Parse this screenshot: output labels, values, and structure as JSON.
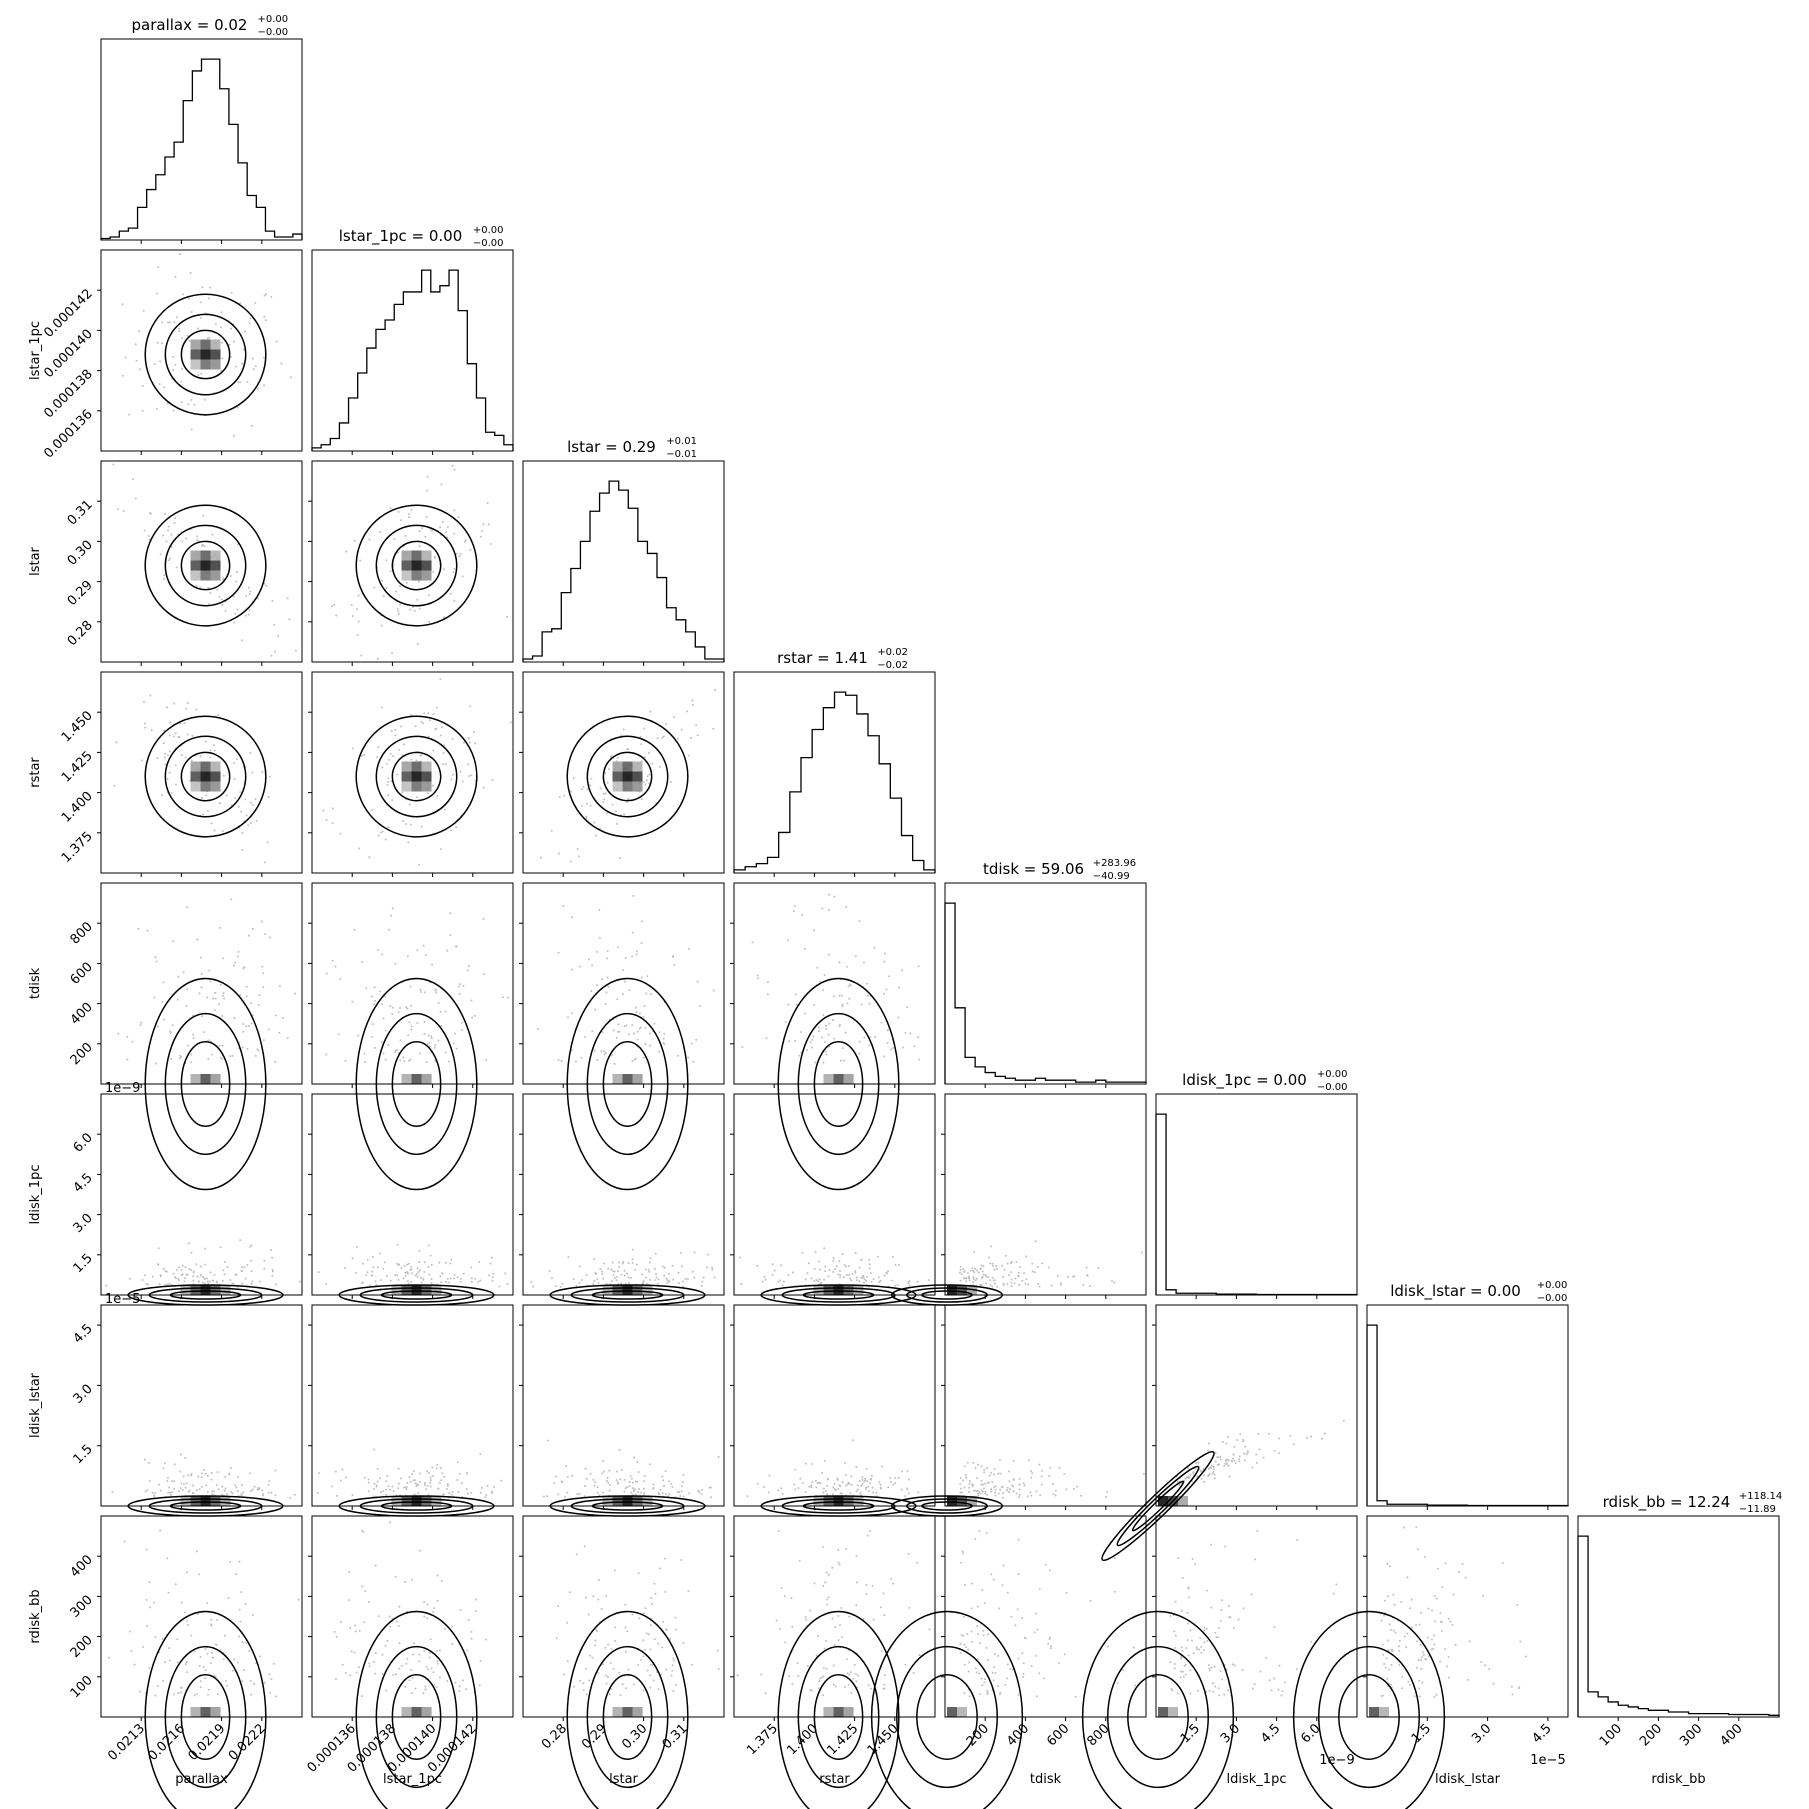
{
  "chart_data": {
    "type": "corner",
    "parameters": [
      {
        "name": "parallax",
        "title": "parallax = 0.02",
        "sup": "+0.00",
        "sub": "−0.00",
        "axis_label": "parallax",
        "range": [
          0.02102,
          0.02235
        ],
        "ticks": [
          "0.0213",
          "0.0216",
          "0.0219",
          "0.0222"
        ],
        "hist": [
          0.5,
          1,
          3,
          4,
          11,
          17,
          22,
          28,
          33,
          47,
          57,
          61,
          61,
          51,
          39,
          26,
          15,
          11,
          3,
          1,
          1,
          2
        ]
      },
      {
        "name": "lstar_1pc",
        "title": "lstar_1pc = 0.00",
        "sup": "+0.00",
        "sub": "−0.00",
        "axis_label": "lstar_1pc",
        "range": [
          0.0001347,
          0.0001434
        ],
        "ticks": [
          "0.000136",
          "0.000138",
          "0.000140",
          "0.000142"
        ],
        "hist": [
          1,
          2,
          4,
          9,
          17,
          25,
          33,
          39,
          42,
          47,
          51,
          51,
          58,
          51,
          53,
          58,
          45,
          28,
          17,
          6,
          5,
          2
        ]
      },
      {
        "name": "lstar",
        "title": "lstar = 0.29",
        "sup": "+0.01",
        "sub": "−0.01",
        "axis_label": "lstar",
        "range": [
          0.2735,
          0.3115
        ],
        "ticks": [
          "0.28",
          "0.29",
          "0.30",
          "0.31"
        ],
        "hist": [
          1,
          2,
          10,
          11,
          23,
          31,
          40,
          50,
          56,
          60,
          57,
          51,
          40,
          36,
          28,
          18,
          14,
          10,
          5,
          1,
          1
        ]
      },
      {
        "name": "rstar",
        "title": "rstar = 1.41",
        "sup": "+0.02",
        "sub": "−0.02",
        "axis_label": "rstar",
        "range": [
          1.361,
          1.468
        ],
        "ticks": [
          "1.375",
          "1.400",
          "1.425",
          "1.450"
        ],
        "hist": [
          1,
          2,
          3,
          5,
          13,
          26,
          37,
          46,
          53,
          58,
          57,
          51,
          44,
          35,
          24,
          12,
          4,
          1
        ]
      },
      {
        "name": "tdisk",
        "title": "tdisk = 59.06",
        "sup": "+283.96",
        "sub": "−40.99",
        "axis_label": "tdisk",
        "range": [
          20,
          1000
        ],
        "ticks": [
          "200",
          "400",
          "600",
          "800"
        ],
        "hist": [
          95,
          40,
          14,
          9,
          6,
          4,
          3,
          2,
          2,
          3,
          2,
          2,
          2,
          1,
          1,
          2,
          1,
          1,
          1,
          1
        ]
      },
      {
        "name": "ldisk_1pc",
        "title": "ldisk_1pc = 0.00",
        "sup": "+0.00",
        "sub": "−0.00",
        "axis_label": "ldisk_1pc",
        "range": [
          0,
          6.9
        ],
        "ticks": [
          "1.5",
          "3.0",
          "4.5",
          "6.0"
        ],
        "offset": "1e−9",
        "hist": [
          105,
          3,
          1,
          1,
          1,
          1,
          0.5,
          0.5,
          0.5,
          0.5,
          0.3,
          0.3,
          0.3,
          0.3,
          0.3,
          0.3,
          0.3,
          0.3,
          0.3,
          0.3
        ]
      },
      {
        "name": "ldisk_lstar",
        "title": "ldisk_lstar = 0.00",
        "sup": "+0.00",
        "sub": "−0.00",
        "axis_label": "ldisk_lstar",
        "range": [
          0,
          4.9
        ],
        "ticks": [
          "1.5",
          "3.0",
          "4.5"
        ],
        "offset": "1e−5",
        "hist": [
          104,
          3,
          1,
          1,
          1,
          1,
          0.5,
          0.5,
          0.5,
          0.5,
          0.3,
          0.3,
          0.3,
          0.3,
          0.3,
          0.3,
          0.3,
          0.3,
          0.3,
          0.3
        ]
      },
      {
        "name": "rdisk_bb",
        "title": "rdisk_bb = 12.24",
        "sup": "+118.14",
        "sub": "−11.89",
        "axis_label": "rdisk_bb",
        "range": [
          0,
          410
        ],
        "ticks": [
          "100",
          "200",
          "300",
          "400"
        ],
        "hist": [
          108,
          15,
          12,
          9,
          7,
          6,
          5,
          4,
          4,
          3,
          3,
          2,
          2,
          2,
          2,
          1.5,
          1.5,
          1.5,
          1.5,
          1
        ]
      }
    ],
    "y_tick_labels": {
      "lstar_1pc": [
        "0.000136",
        "0.000138",
        "0.000140",
        "0.000142"
      ],
      "lstar": [
        "0.28",
        "0.29",
        "0.30",
        "0.31"
      ],
      "rstar": [
        "1.375",
        "1.400",
        "1.425",
        "1.450"
      ],
      "tdisk": [
        "200",
        "400",
        "600",
        "800"
      ],
      "ldisk_1pc": [
        "1.5",
        "3.0",
        "4.5",
        "6.0"
      ],
      "ldisk_lstar": [
        "1.5",
        "3.0",
        "4.5"
      ],
      "rdisk_bb": [
        "100",
        "200",
        "300",
        "400"
      ]
    },
    "y_offsets": {
      "ldisk_1pc": "1e−9",
      "ldisk_lstar": "1e−5"
    },
    "grid": false,
    "colors": {
      "line": "#000000",
      "scatter": "#b8b8b8",
      "density": "#000000"
    }
  }
}
